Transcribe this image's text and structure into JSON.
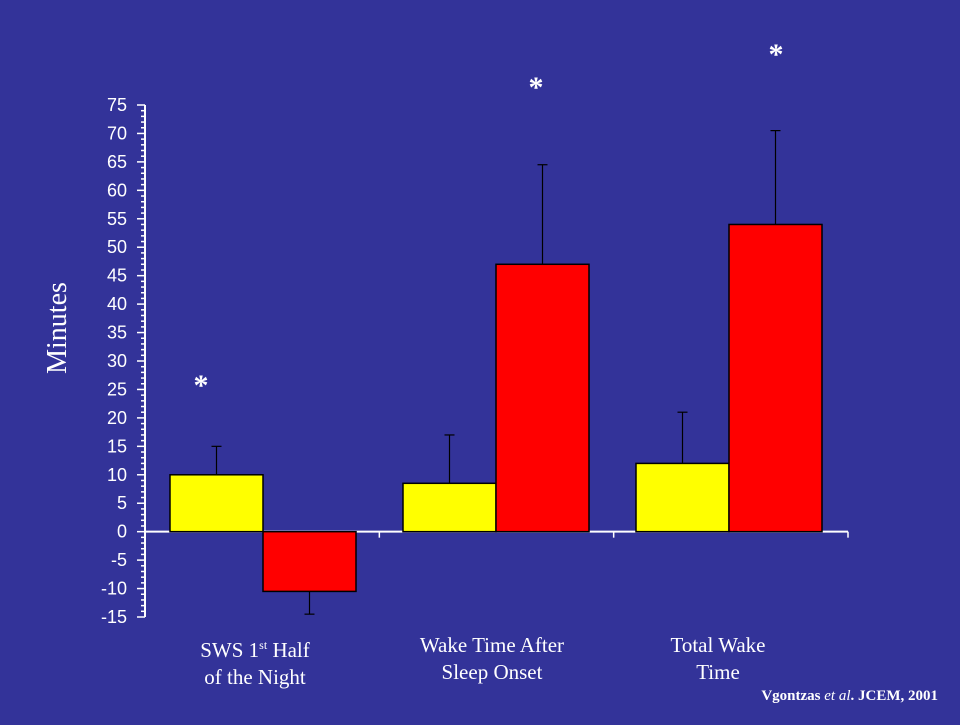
{
  "chart_data": {
    "type": "bar",
    "ylabel": "Minutes",
    "ylim": [
      -15,
      75
    ],
    "ytick_step": 5,
    "categories": [
      {
        "line1": "SWS 1",
        "sup": "st",
        "line1_rest": " Half",
        "line2": "of the Night"
      },
      {
        "line1": "Wake Time After",
        "line2": "Sleep Onset"
      },
      {
        "line1": "Total Wake",
        "line2": "Time"
      }
    ],
    "series": [
      {
        "color": "#ffff00",
        "values": [
          10,
          8.5,
          12
        ],
        "errors": [
          5,
          8.5,
          9
        ]
      },
      {
        "color": "#ff0000",
        "values": [
          -10.5,
          47,
          54
        ],
        "errors": [
          4,
          17.5,
          16.5
        ]
      }
    ],
    "significance": [
      {
        "category": 0,
        "text": "*"
      },
      {
        "category": 1,
        "text": "*"
      },
      {
        "category": 2,
        "text": "*"
      }
    ],
    "grid": false,
    "legend": "none"
  },
  "citation": {
    "author": "Vgontzas ",
    "etal": "et al",
    "rest": ". JCEM, 2001"
  }
}
